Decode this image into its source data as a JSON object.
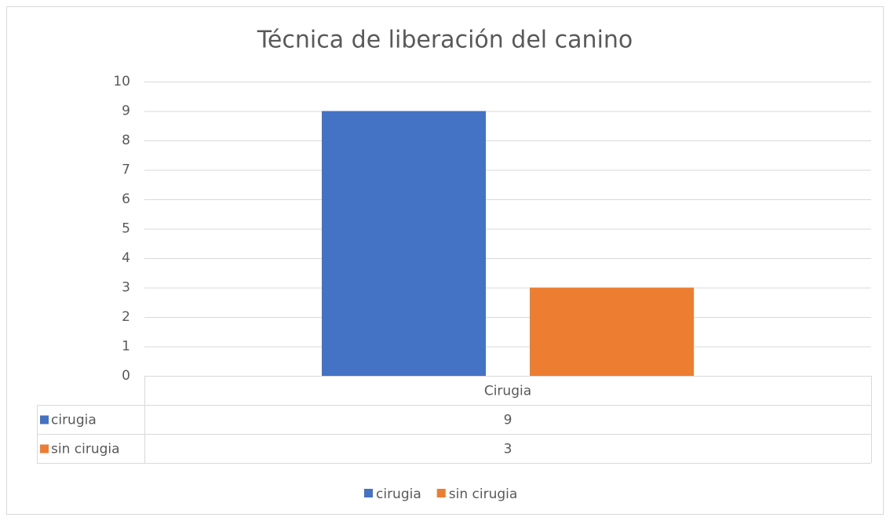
{
  "chart_data": {
    "type": "bar",
    "title": "Técnica de liberación del canino",
    "categories": [
      "Cirugia"
    ],
    "series": [
      {
        "name": "cirugia",
        "color": "#4472c4",
        "values": [
          9
        ]
      },
      {
        "name": "sin cirugia",
        "color": "#ed7d31",
        "values": [
          3
        ]
      }
    ],
    "ylim": [
      0,
      10
    ],
    "yticks": [
      0,
      1,
      2,
      3,
      4,
      5,
      6,
      7,
      8,
      9,
      10
    ],
    "grid": true,
    "legend": "bottom"
  }
}
